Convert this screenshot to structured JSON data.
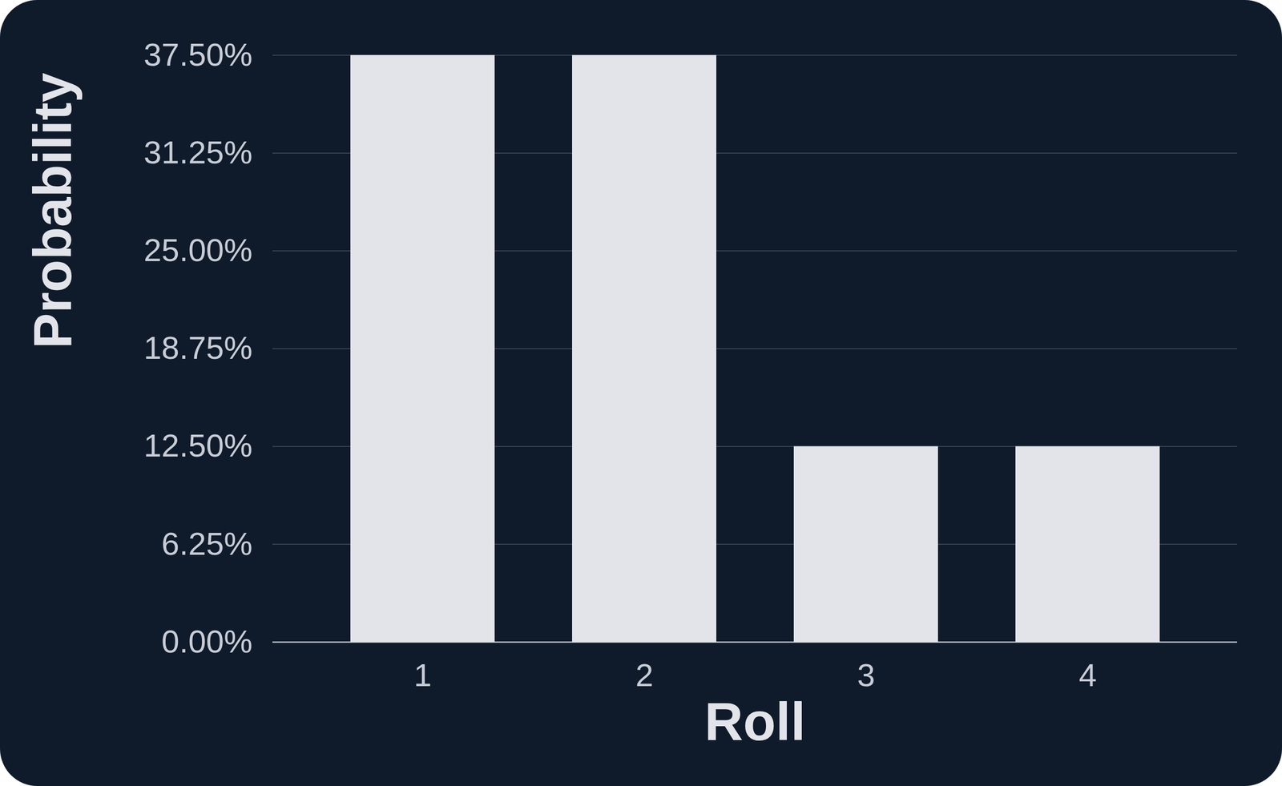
{
  "chart_data": {
    "type": "bar",
    "categories": [
      "1",
      "2",
      "3",
      "4"
    ],
    "values": [
      37.5,
      37.5,
      12.5,
      12.5
    ],
    "color": "#e2e4e9",
    "x_label": "Roll",
    "y_label": "Probability",
    "ylim": [
      0,
      37.5
    ],
    "yticks": [
      {
        "value": 0,
        "label": "0.00%"
      },
      {
        "value": 6.25,
        "label": "6.25%"
      },
      {
        "value": 12.5,
        "label": "12.50%"
      },
      {
        "value": 18.75,
        "label": "18.75%"
      },
      {
        "value": 25,
        "label": "25.00%"
      },
      {
        "value": 31.25,
        "label": "31.25%"
      },
      {
        "value": 37.5,
        "label": "37.50%"
      }
    ],
    "grid": true
  }
}
